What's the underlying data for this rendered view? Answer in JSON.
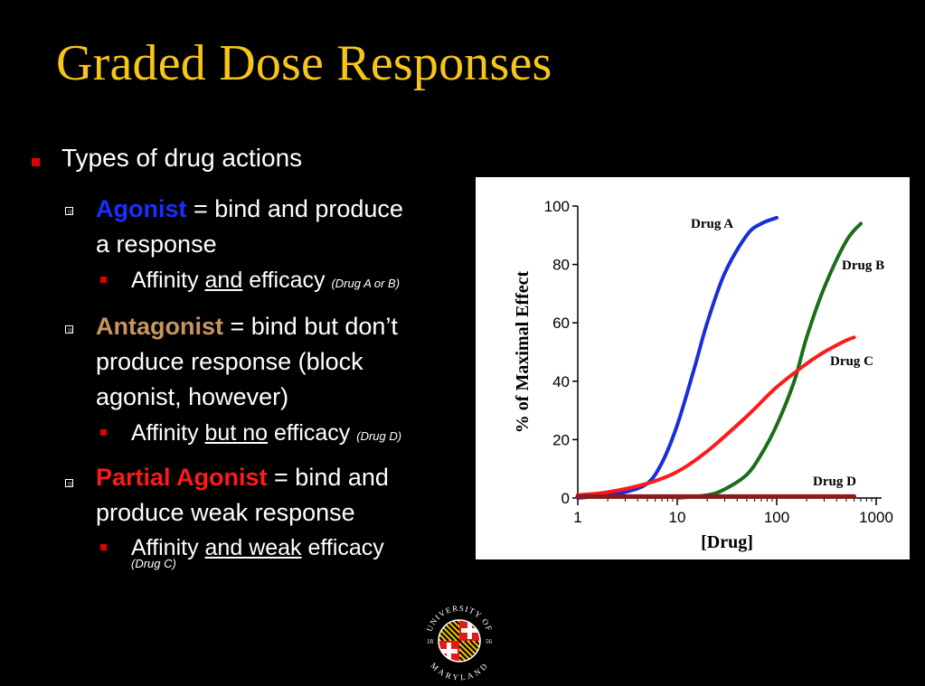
{
  "slide": {
    "title": "Graded Dose Responses",
    "bullets": {
      "types": "Types of drug actions",
      "agonist_term": "Agonist",
      "agonist_def_1": " = bind and produce",
      "agonist_def_2": "a response",
      "agonist_sub_a": "Affinity ",
      "agonist_sub_b": "and",
      "agonist_sub_c": " efficacy ",
      "agonist_note": "(Drug A or B)",
      "antagonist_term": "Antagonist",
      "antagonist_def_1": " = bind but don’t",
      "antagonist_def_2": "produce response (block",
      "antagonist_def_3": "agonist, however)",
      "antagonist_sub_a": "Affinity ",
      "antagonist_sub_b": "but no",
      "antagonist_sub_c": " efficacy ",
      "antagonist_note": "(Drug D)",
      "partial_term": "Partial Agonist",
      "partial_def_1": " = bind and",
      "partial_def_2": "produce weak response",
      "partial_sub_a": "Affinity ",
      "partial_sub_b": "and weak",
      "partial_sub_c": " efficacy",
      "partial_note": "(Drug C)"
    },
    "logo": {
      "top_text": "UNIVERSITY OF",
      "bottom_text": "MARYLAND",
      "year_left": "18",
      "year_right": "56"
    },
    "colors": {
      "title": "#f5c518",
      "agonist": "#1a2eff",
      "antagonist": "#c8955e",
      "partial": "#ff1a1a",
      "bullet": "#e00000"
    }
  },
  "chart_data": {
    "type": "line",
    "xlabel": "[Drug]",
    "ylabel": "% of Maximal Effect",
    "x_scale": "log",
    "xlim": [
      1,
      1000
    ],
    "ylim": [
      0,
      100
    ],
    "x_ticks": [
      "1",
      "10",
      "100",
      "1000"
    ],
    "y_ticks": [
      "0",
      "20",
      "40",
      "60",
      "80",
      "100"
    ],
    "grid": false,
    "series": [
      {
        "name": "Drug A",
        "color": "#1a2ed6",
        "x": [
          1,
          2,
          3,
          5,
          7,
          10,
          15,
          20,
          30,
          50,
          70,
          100
        ],
        "y": [
          0,
          1,
          2,
          5,
          12,
          25,
          45,
          60,
          77,
          90,
          94,
          96
        ]
      },
      {
        "name": "Drug B",
        "color": "#1a6e1a",
        "x": [
          10,
          20,
          30,
          50,
          70,
          100,
          150,
          200,
          300,
          500,
          700
        ],
        "y": [
          0,
          1,
          3,
          8,
          15,
          25,
          40,
          55,
          72,
          88,
          94
        ]
      },
      {
        "name": "Drug C",
        "color": "#ff1a1a",
        "x": [
          1,
          2,
          5,
          10,
          20,
          50,
          100,
          200,
          300,
          500,
          600
        ],
        "y": [
          1,
          2,
          5,
          9,
          16,
          28,
          38,
          46,
          50,
          54,
          55
        ]
      },
      {
        "name": "Drug D",
        "color": "#8b1a1a",
        "x": [
          1,
          10,
          100,
          600
        ],
        "y": [
          0.5,
          0.5,
          0.5,
          0.5
        ]
      }
    ]
  }
}
